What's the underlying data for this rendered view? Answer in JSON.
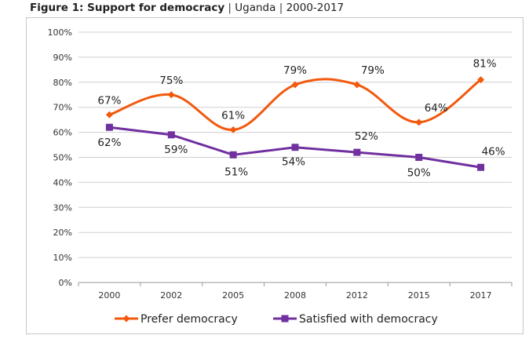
{
  "figure": {
    "title_lead": "Figure 1: Support for democracy",
    "separator": "|",
    "country": "Uganda",
    "period": "2000-2017"
  },
  "chart_data": {
    "type": "line",
    "title": "Figure 1: Support for democracy | Uganda | 2000-2017",
    "xlabel": "",
    "ylabel": "",
    "categories": [
      "2000",
      "2002",
      "2005",
      "2008",
      "2012",
      "2015",
      "2017"
    ],
    "ylim": [
      0,
      100
    ],
    "yticks": [
      "0%",
      "10%",
      "20%",
      "30%",
      "40%",
      "50%",
      "60%",
      "70%",
      "80%",
      "90%",
      "100%"
    ],
    "grid": true,
    "legend_position": "bottom",
    "series": [
      {
        "name": "Prefer democracy",
        "values": [
          67,
          75,
          61,
          79,
          79,
          64,
          81
        ],
        "labels": [
          "67%",
          "75%",
          "61%",
          "79%",
          "79%",
          "64%",
          "81%"
        ],
        "color": "#f2590d",
        "marker": "diamond",
        "smooth": true
      },
      {
        "name": "Satisfied with democracy",
        "values": [
          62,
          59,
          51,
          54,
          52,
          50,
          46
        ],
        "labels": [
          "62%",
          "59%",
          "51%",
          "54%",
          "52%",
          "50%",
          "46%"
        ],
        "color": "#7030a0",
        "marker": "square",
        "smooth": false
      }
    ]
  }
}
